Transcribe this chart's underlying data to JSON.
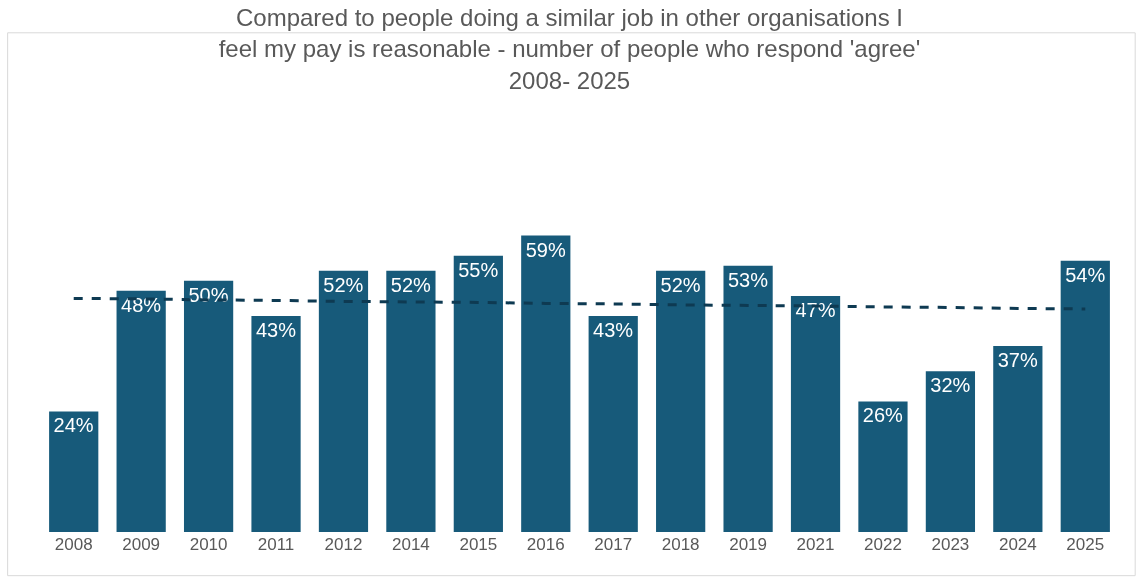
{
  "chart_data": {
    "type": "bar",
    "title": "Compared to people doing a similar job in other organisations I\nfeel my pay is reasonable - number of people who respond 'agree'\n2008- 2025",
    "categories": [
      "2008",
      "2009",
      "2010",
      "2011",
      "2012",
      "2014",
      "2015",
      "2016",
      "2017",
      "2018",
      "2019",
      "2021",
      "2022",
      "2023",
      "2024",
      "2025"
    ],
    "series": [
      {
        "color": "#175a7a",
        "values": [
          24,
          48,
          50,
          43,
          52,
          52,
          55,
          59,
          43,
          52,
          53,
          47,
          26,
          32,
          37,
          54
        ],
        "value_labels": [
          "24%",
          "48%",
          "50%",
          "43%",
          "52%",
          "52%",
          "55%",
          "59%",
          "43%",
          "52%",
          "53%",
          "47%",
          "26%",
          "32%",
          "37%",
          "54%"
        ]
      },
      {
        "type": "line",
        "color": "#0e3a52",
        "line_style": "dashed",
        "values": [
          46.5,
          46.4,
          46.2,
          46.1,
          45.9,
          45.8,
          45.7,
          45.5,
          45.4,
          45.2,
          45.1,
          45.0,
          44.8,
          44.7,
          44.5,
          44.4
        ]
      }
    ]
  }
}
